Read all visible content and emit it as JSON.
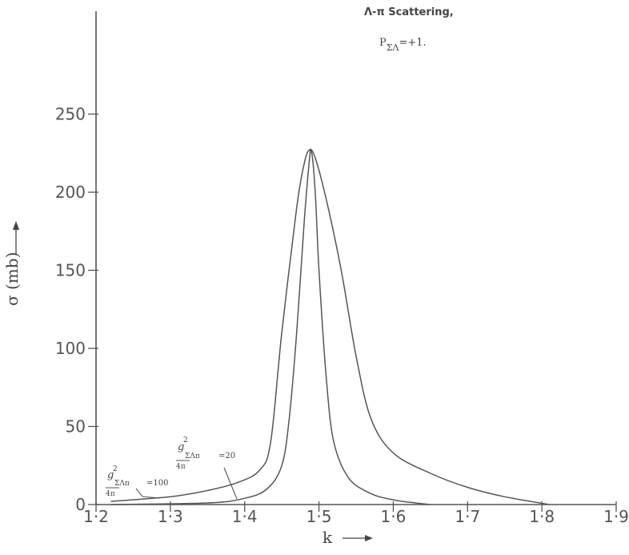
{
  "chart_data": {
    "type": "line",
    "title": "Λ-π Scattering,",
    "subtitle": {
      "main": "P",
      "sub": "ΣΛ",
      "rest": "=+1."
    },
    "xlabel": "k",
    "ylabel": "σ (mb)",
    "xlim": [
      1.2,
      1.9
    ],
    "ylim": [
      0,
      300
    ],
    "xticks": [
      "1·2",
      "1·3",
      "1·4",
      "1·5",
      "1·6",
      "1·7",
      "1·8",
      "1·9"
    ],
    "yticks": [
      "0",
      "50",
      "100",
      "150",
      "200",
      "250"
    ],
    "grid": false,
    "series": [
      {
        "label": {
          "g": "g",
          "sup": "2",
          "sub": "ΣΛπ",
          "den": "4π",
          "eq": "=100"
        },
        "x": [
          1.22,
          1.3,
          1.35,
          1.39,
          1.42,
          1.435,
          1.45,
          1.47,
          1.48,
          1.487,
          1.495,
          1.51,
          1.53,
          1.55,
          1.57,
          1.6,
          1.65,
          1.7,
          1.75,
          1.81
        ],
        "y": [
          2,
          5,
          9,
          14,
          22,
          40,
          110,
          190,
          218,
          227,
          222,
          195,
          150,
          95,
          55,
          33,
          20,
          11,
          5,
          0
        ]
      },
      {
        "label": {
          "g": "g",
          "sup": "2",
          "sub": "ΣΛπ",
          "den": "4π",
          "eq": "=20"
        },
        "x": [
          1.22,
          1.35,
          1.4,
          1.43,
          1.45,
          1.46,
          1.47,
          1.48,
          1.487,
          1.49,
          1.495,
          1.5,
          1.51,
          1.52,
          1.54,
          1.57,
          1.6,
          1.63,
          1.65
        ],
        "y": [
          0,
          1,
          4,
          10,
          25,
          55,
          110,
          180,
          220,
          226,
          200,
          150,
          80,
          40,
          17,
          7,
          3,
          1,
          0
        ]
      }
    ]
  }
}
